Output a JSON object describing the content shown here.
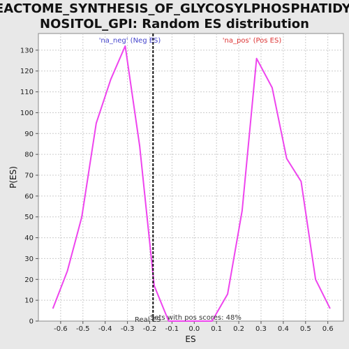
{
  "chart_data": {
    "type": "line",
    "title_line1": "REACTOME_SYNTHESIS_OF_GLYCOSYLPHOSPHATIDYLI",
    "title_line2": "NOSITOL_GPI: Random ES distribution",
    "xlabel": "ES",
    "ylabel": "P(ES)",
    "xlim": [
      -0.7,
      0.67
    ],
    "ylim": [
      0,
      138
    ],
    "xticks": [
      -0.6,
      -0.5,
      -0.4,
      -0.3,
      -0.2,
      -0.1,
      0.0,
      0.1,
      0.2,
      0.3,
      0.4,
      0.5,
      0.6
    ],
    "yticks": [
      0,
      10,
      20,
      30,
      40,
      50,
      60,
      70,
      80,
      90,
      100,
      110,
      120,
      130
    ],
    "grid": true,
    "series": [
      {
        "color": "#ee44ee",
        "points": [
          [
            -0.635,
            6
          ],
          [
            -0.57,
            24
          ],
          [
            -0.505,
            50
          ],
          [
            -0.44,
            95
          ],
          [
            -0.375,
            116
          ],
          [
            -0.31,
            132
          ],
          [
            -0.245,
            84
          ],
          [
            -0.18,
            17
          ],
          [
            -0.115,
            0
          ],
          [
            -0.05,
            0
          ],
          [
            0.015,
            0
          ],
          [
            0.08,
            0
          ],
          [
            0.15,
            13
          ],
          [
            0.215,
            53
          ],
          [
            0.28,
            126
          ],
          [
            0.35,
            112
          ],
          [
            0.415,
            78
          ],
          [
            0.48,
            67
          ],
          [
            0.545,
            20
          ],
          [
            0.61,
            6
          ]
        ]
      }
    ],
    "real_es": -0.185,
    "annotations": {
      "neg_label": "'na_neg' (Neg ES)",
      "pos_label": "'na_pos' (Pos ES)",
      "real_label": "Real ES",
      "sets_label": "Sets with pos scores: 48%"
    },
    "colors": {
      "neg": "#4444cc",
      "pos": "#dd3333",
      "line": "#ee44ee",
      "grid": "#cccccc",
      "real_line": "#111111"
    }
  }
}
